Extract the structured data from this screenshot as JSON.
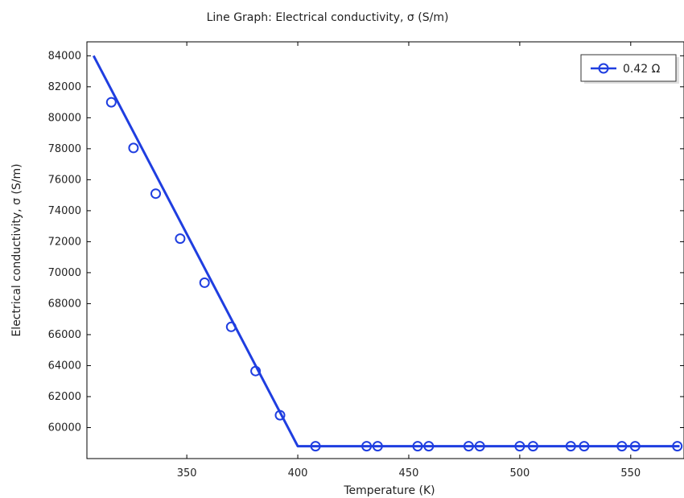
{
  "chart_data": {
    "type": "line",
    "title": "Line Graph: Electrical conductivity, σ (S/m)",
    "xlabel": "Temperature (K)",
    "ylabel": "Electrical conductivity, σ (S/m)",
    "xlim": [
      305,
      574
    ],
    "ylim": [
      58000,
      84900
    ],
    "x_ticks": [
      350,
      400,
      450,
      500,
      550
    ],
    "y_ticks": [
      60000,
      62000,
      64000,
      66000,
      68000,
      70000,
      72000,
      74000,
      76000,
      78000,
      80000,
      82000,
      84000
    ],
    "grid": false,
    "legend_position": "top-right",
    "series": [
      {
        "name": "0.42 Ω",
        "color": "#1f3ee0",
        "line_x": [
          308,
          400,
          572
        ],
        "line_y": [
          84000,
          58800,
          58800
        ],
        "marker_x": [
          316,
          326,
          336,
          347,
          358,
          370,
          381,
          392,
          408,
          431,
          436,
          454,
          459,
          477,
          482,
          500,
          506,
          523,
          529,
          546,
          552,
          571
        ],
        "marker_y": [
          81000,
          78050,
          75100,
          72200,
          69350,
          66500,
          63650,
          60800,
          58800,
          58800,
          58800,
          58800,
          58800,
          58800,
          58800,
          58800,
          58800,
          58800,
          58800,
          58800,
          58800,
          58800
        ]
      }
    ]
  }
}
